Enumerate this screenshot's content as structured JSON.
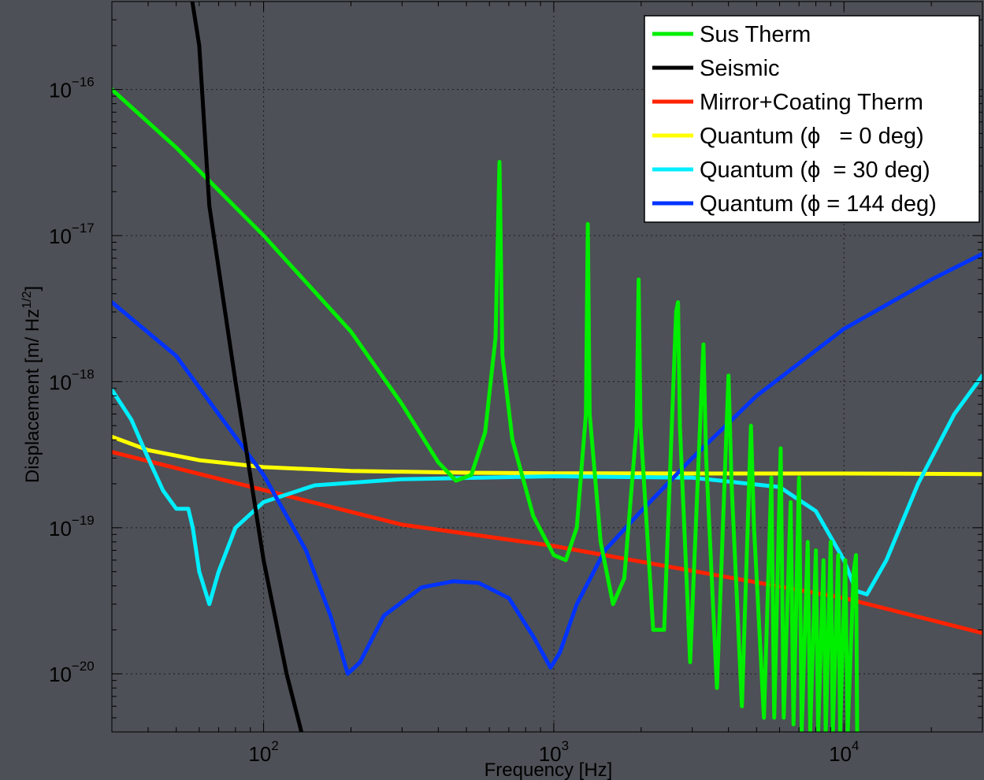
{
  "chart_data": {
    "type": "line",
    "x_scale": "log",
    "y_scale": "log",
    "xlim": [
      30,
      30000
    ],
    "ylim": [
      4e-21,
      4e-16
    ],
    "grid": true,
    "legend_position": "top-right",
    "xlabel": "Frequency [Hz]",
    "ylabel_main": "Displacement [m/ Hz",
    "ylabel_sup": "1/2",
    "ylabel_close": "]",
    "x_ticks": [
      {
        "value": 100,
        "base": "10",
        "exp": "2"
      },
      {
        "value": 1000,
        "base": "10",
        "exp": "3"
      },
      {
        "value": 10000,
        "base": "10",
        "exp": "4"
      }
    ],
    "y_ticks": [
      {
        "value": 1e-16,
        "base": "10",
        "exp": "−16"
      },
      {
        "value": 1e-17,
        "base": "10",
        "exp": "−17"
      },
      {
        "value": 1e-18,
        "base": "10",
        "exp": "−18"
      },
      {
        "value": 1e-19,
        "base": "10",
        "exp": "−19"
      },
      {
        "value": 1e-20,
        "base": "10",
        "exp": "−20"
      }
    ],
    "series": [
      {
        "name": "Sus Therm",
        "color": "#00ee00",
        "points": [
          [
            30,
            1e-16
          ],
          [
            50,
            4e-17
          ],
          [
            100,
            1e-17
          ],
          [
            200,
            2.2e-18
          ],
          [
            300,
            7e-19
          ],
          [
            400,
            2.8e-19
          ],
          [
            460,
            2.1e-19
          ],
          [
            520,
            2.3e-19
          ],
          [
            580,
            4.5e-19
          ],
          [
            630,
            2e-18
          ],
          [
            650,
            3.2e-17
          ],
          [
            665,
            1.5e-18
          ],
          [
            720,
            4e-19
          ],
          [
            850,
            1.2e-19
          ],
          [
            1000,
            6.5e-20
          ],
          [
            1100,
            6e-20
          ],
          [
            1200,
            1e-19
          ],
          [
            1290,
            6e-19
          ],
          [
            1310,
            1.2e-17
          ],
          [
            1330,
            6e-19
          ],
          [
            1450,
            8e-20
          ],
          [
            1600,
            3e-20
          ],
          [
            1750,
            4.5e-20
          ],
          [
            1930,
            5e-19
          ],
          [
            1960,
            5e-18
          ],
          [
            1990,
            5e-19
          ],
          [
            2200,
            2e-20
          ],
          [
            2400,
            2e-20
          ],
          [
            2640,
            3e-18
          ],
          [
            2680,
            3.5e-18
          ],
          [
            2720,
            5e-19
          ],
          [
            2950,
            1.2e-20
          ],
          [
            3280,
            1.8e-18
          ],
          [
            3350,
            3e-19
          ],
          [
            3650,
            8e-21
          ],
          [
            4000,
            1.1e-18
          ],
          [
            4100,
            2e-19
          ],
          [
            4450,
            6e-21
          ],
          [
            4780,
            5e-19
          ],
          [
            4900,
            1e-19
          ],
          [
            5300,
            5e-21
          ],
          [
            5620,
            2.2e-19
          ],
          [
            5750,
            5e-21
          ],
          [
            6050,
            3.5e-19
          ],
          [
            6200,
            5e-21
          ],
          [
            6550,
            1.5e-19
          ],
          [
            6700,
            4.5e-21
          ],
          [
            7000,
            2.2e-19
          ],
          [
            7150,
            4e-21
          ],
          [
            7500,
            8e-20
          ],
          [
            7650,
            4e-21
          ],
          [
            8000,
            7e-20
          ],
          [
            8150,
            4e-21
          ],
          [
            8500,
            6e-20
          ],
          [
            8650,
            4e-21
          ],
          [
            9000,
            8e-20
          ],
          [
            9150,
            4e-21
          ],
          [
            9550,
            6.5e-20
          ],
          [
            9700,
            4e-21
          ],
          [
            10100,
            6e-20
          ],
          [
            10300,
            4e-21
          ],
          [
            10800,
            5e-20
          ],
          [
            11000,
            6.5e-20
          ],
          [
            11100,
            4e-21
          ]
        ]
      },
      {
        "name": "Seismic",
        "color": "#000000",
        "points": [
          [
            50,
            2e-15
          ],
          [
            60,
            2e-16
          ],
          [
            65,
            1.6e-17
          ],
          [
            80,
            1e-18
          ],
          [
            100,
            6e-20
          ],
          [
            120,
            1e-20
          ],
          [
            135,
            4e-21
          ]
        ]
      },
      {
        "name": "Mirror+Coating Therm",
        "color": "#ff2200",
        "points": [
          [
            30,
            3.3e-19
          ],
          [
            300,
            1.05e-19
          ],
          [
            1000,
            7.5e-20
          ],
          [
            10000,
            3.3e-20
          ],
          [
            30000,
            1.9e-20
          ]
        ]
      },
      {
        "name": "Quantum (ϕ   = 0 deg)",
        "color": "#ffff00",
        "points": [
          [
            30,
            4.2e-19
          ],
          [
            40,
            3.4e-19
          ],
          [
            60,
            2.9e-19
          ],
          [
            100,
            2.6e-19
          ],
          [
            200,
            2.45e-19
          ],
          [
            500,
            2.38e-19
          ],
          [
            1000,
            2.36e-19
          ],
          [
            3000,
            2.35e-19
          ],
          [
            10000,
            2.35e-19
          ],
          [
            30000,
            2.33e-19
          ]
        ]
      },
      {
        "name": "Quantum (ϕ  = 30 deg)",
        "color": "#00eeff",
        "points": [
          [
            30,
            8.8e-19
          ],
          [
            35,
            5.5e-19
          ],
          [
            40,
            3e-19
          ],
          [
            45,
            1.8e-19
          ],
          [
            50,
            1.35e-19
          ],
          [
            55,
            1.35e-19
          ],
          [
            57,
            1e-19
          ],
          [
            60,
            5e-20
          ],
          [
            65,
            3e-20
          ],
          [
            70,
            5e-20
          ],
          [
            80,
            1e-19
          ],
          [
            100,
            1.5e-19
          ],
          [
            150,
            1.95e-19
          ],
          [
            300,
            2.15e-19
          ],
          [
            1000,
            2.25e-19
          ],
          [
            3000,
            2.2e-19
          ],
          [
            6000,
            1.9e-19
          ],
          [
            8000,
            1.3e-19
          ],
          [
            10000,
            6e-20
          ],
          [
            11000,
            3.7e-20
          ],
          [
            12000,
            3.5e-20
          ],
          [
            14000,
            6e-20
          ],
          [
            18000,
            2e-19
          ],
          [
            24000,
            6e-19
          ],
          [
            30000,
            1.1e-18
          ]
        ]
      },
      {
        "name": "Quantum (ϕ = 144 deg)",
        "color": "#0033ff",
        "points": [
          [
            30,
            3.5e-18
          ],
          [
            50,
            1.5e-18
          ],
          [
            70,
            6e-19
          ],
          [
            100,
            2.3e-19
          ],
          [
            140,
            7e-20
          ],
          [
            170,
            2.5e-20
          ],
          [
            195,
            1e-20
          ],
          [
            215,
            1.2e-20
          ],
          [
            260,
            2.5e-20
          ],
          [
            350,
            3.9e-20
          ],
          [
            450,
            4.3e-20
          ],
          [
            550,
            4.2e-20
          ],
          [
            700,
            3.3e-20
          ],
          [
            850,
            1.8e-20
          ],
          [
            975,
            1.1e-20
          ],
          [
            1050,
            1.4e-20
          ],
          [
            1200,
            3e-20
          ],
          [
            1500,
            7e-20
          ],
          [
            2000,
            1.3e-19
          ],
          [
            3000,
            3e-19
          ],
          [
            5000,
            8e-19
          ],
          [
            10000,
            2.3e-18
          ],
          [
            20000,
            5e-18
          ],
          [
            30000,
            7.5e-18
          ]
        ]
      }
    ]
  }
}
